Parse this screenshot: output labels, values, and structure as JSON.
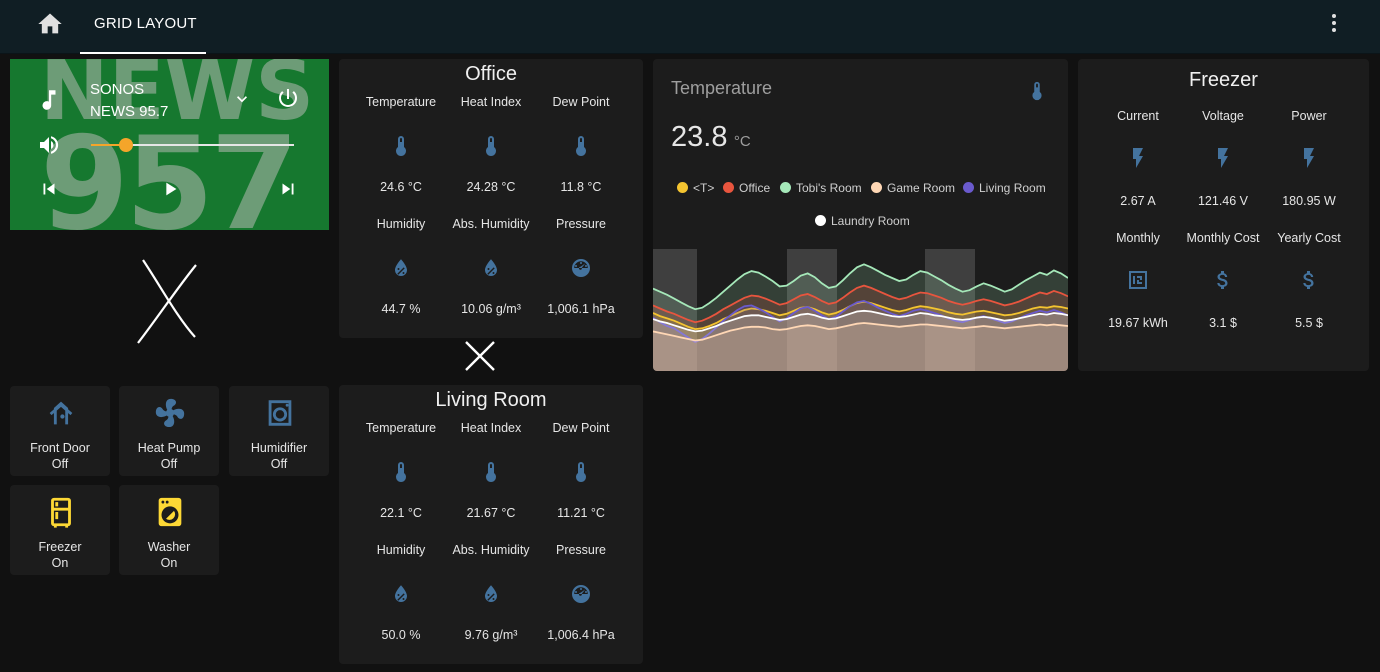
{
  "header": {
    "tab_label": "GRID LAYOUT"
  },
  "media_player": {
    "art_line1": "NEWS",
    "art_line2": "957",
    "source": "SONOS",
    "title": "NEWS 95.7",
    "volume_percent": 17
  },
  "office": {
    "title": "Office",
    "cells": [
      {
        "label": "Temperature",
        "value": "24.6 °C",
        "icon": "thermometer-icon"
      },
      {
        "label": "Heat Index",
        "value": "24.28 °C",
        "icon": "thermometer-icon"
      },
      {
        "label": "Dew Point",
        "value": "11.8 °C",
        "icon": "thermometer-icon"
      },
      {
        "label": "Humidity",
        "value": "44.7 %",
        "icon": "water-percent-icon"
      },
      {
        "label": "Abs. Humidity",
        "value": "10.06 g/m³",
        "icon": "water-percent-icon"
      },
      {
        "label": "Pressure",
        "value": "1,006.1 hPa",
        "icon": "gauge-icon"
      }
    ]
  },
  "living_room": {
    "title": "Living Room",
    "cells": [
      {
        "label": "Temperature",
        "value": "22.1 °C",
        "icon": "thermometer-icon"
      },
      {
        "label": "Heat Index",
        "value": "21.67 °C",
        "icon": "thermometer-icon"
      },
      {
        "label": "Dew Point",
        "value": "11.21 °C",
        "icon": "thermometer-icon"
      },
      {
        "label": "Humidity",
        "value": "50.0 %",
        "icon": "water-percent-icon"
      },
      {
        "label": "Abs. Humidity",
        "value": "9.76 g/m³",
        "icon": "water-percent-icon"
      },
      {
        "label": "Pressure",
        "value": "1,006.4 hPa",
        "icon": "gauge-icon"
      }
    ]
  },
  "tiles": [
    {
      "name": "Front Door",
      "state": "Off",
      "icon": "door-icon",
      "color": "#44739e"
    },
    {
      "name": "Heat Pump",
      "state": "Off",
      "icon": "air-conditioner-icon",
      "color": "#44739e"
    },
    {
      "name": "Humidifier",
      "state": "Off",
      "icon": "humidifier-icon",
      "color": "#44739e"
    },
    {
      "name": "Freezer",
      "state": "On",
      "icon": "fridge-icon",
      "color": "#fdd835"
    },
    {
      "name": "Washer",
      "state": "On",
      "icon": "washing-machine-icon",
      "color": "#fdd835"
    }
  ],
  "temperature_graph": {
    "title": "Temperature",
    "value": "23.8",
    "unit": "°C",
    "icon": "thermometer-icon"
  },
  "chart_data": {
    "type": "line",
    "title": "Temperature",
    "x": [
      0,
      1,
      2,
      3,
      4,
      5,
      6,
      7,
      8,
      9,
      10,
      11,
      12,
      13,
      14,
      15,
      16,
      17,
      18,
      19,
      20,
      21,
      22,
      23,
      24,
      25,
      26,
      27,
      28,
      29,
      30,
      31,
      32,
      33,
      34,
      35,
      36,
      37,
      38,
      39,
      40,
      41,
      42,
      43,
      44,
      45,
      46,
      47,
      48,
      49,
      50,
      51,
      52,
      53,
      54,
      55,
      56,
      57,
      58,
      59
    ],
    "ylim": [
      14,
      30
    ],
    "series": [
      {
        "name": "<T>",
        "color": "#f4c430",
        "values": [
          21.6,
          21.2,
          20.9,
          20.6,
          20.2,
          19.8,
          19.5,
          19.6,
          19.9,
          20.3,
          20.8,
          21.2,
          21.6,
          22.0,
          22.2,
          22.1,
          21.9,
          21.6,
          21.3,
          21.5,
          21.9,
          22.3,
          22.4,
          22.1,
          21.7,
          21.4,
          21.6,
          22.0,
          22.5,
          22.9,
          23.1,
          22.9,
          22.6,
          22.3,
          22.0,
          21.8,
          22.0,
          22.3,
          22.5,
          22.4,
          22.2,
          22.0,
          21.7,
          21.5,
          21.4,
          21.6,
          21.8,
          21.9,
          21.7,
          21.5,
          21.3,
          21.4,
          21.6,
          21.9,
          22.2,
          22.4,
          22.3,
          22.5,
          22.4,
          22.2
        ]
      },
      {
        "name": "Office",
        "color": "#e8553e",
        "values": [
          22.6,
          22.2,
          21.8,
          21.5,
          21.1,
          20.7,
          20.4,
          20.6,
          21.0,
          21.5,
          22.1,
          22.6,
          23.1,
          23.6,
          23.9,
          23.8,
          23.5,
          23.1,
          22.7,
          22.9,
          23.4,
          23.9,
          24.1,
          23.7,
          23.2,
          22.8,
          23.0,
          23.6,
          24.3,
          24.9,
          25.2,
          24.9,
          24.5,
          24.1,
          23.7,
          23.4,
          23.6,
          24.0,
          24.3,
          24.2,
          23.9,
          23.6,
          23.2,
          22.9,
          22.7,
          22.9,
          23.2,
          23.4,
          23.2,
          22.9,
          22.6,
          22.8,
          23.1,
          23.5,
          23.9,
          24.3,
          24.1,
          24.5,
          24.2,
          23.8
        ]
      },
      {
        "name": "Tobi's Room",
        "color": "#a5e8b9",
        "values": [
          24.8,
          24.4,
          24.0,
          23.5,
          23.0,
          22.5,
          22.1,
          22.3,
          22.9,
          23.6,
          24.4,
          25.2,
          26.0,
          26.7,
          27.1,
          26.9,
          26.4,
          25.8,
          25.1,
          25.2,
          25.8,
          26.5,
          26.8,
          26.3,
          25.5,
          24.9,
          25.1,
          25.9,
          26.8,
          27.6,
          28.0,
          27.6,
          27.1,
          26.6,
          26.2,
          25.8,
          26.0,
          26.6,
          27.1,
          26.9,
          26.4,
          25.9,
          25.3,
          24.8,
          24.4,
          24.6,
          25.1,
          25.5,
          25.2,
          24.8,
          24.4,
          24.7,
          25.3,
          25.9,
          26.4,
          26.9,
          26.6,
          27.2,
          26.8,
          26.2
        ]
      },
      {
        "name": "Game Room",
        "color": "#ffd7b5",
        "values": [
          19.2,
          19.0,
          18.8,
          18.6,
          18.4,
          18.2,
          18.0,
          18.1,
          18.4,
          18.7,
          19.0,
          19.3,
          19.5,
          19.7,
          19.8,
          19.8,
          19.7,
          19.5,
          19.4,
          19.5,
          19.7,
          19.9,
          20.0,
          19.9,
          19.7,
          19.5,
          19.6,
          19.8,
          20.0,
          20.2,
          20.3,
          20.2,
          20.1,
          20.0,
          19.9,
          19.8,
          19.9,
          20.0,
          20.1,
          20.1,
          20.0,
          19.9,
          19.8,
          19.7,
          19.6,
          19.7,
          19.8,
          19.9,
          19.8,
          19.7,
          19.6,
          19.7,
          19.8,
          19.9,
          20.0,
          20.1,
          20.0,
          20.1,
          20.0,
          19.9
        ]
      },
      {
        "name": "Living Room",
        "color": "#6a5acd",
        "values": [
          21.0,
          20.4,
          19.9,
          19.6,
          19.0,
          18.4,
          17.8,
          18.2,
          18.9,
          19.7,
          20.6,
          21.3,
          22.0,
          22.5,
          22.6,
          22.2,
          21.7,
          21.1,
          20.5,
          20.9,
          21.6,
          22.2,
          22.4,
          21.9,
          21.3,
          20.8,
          21.1,
          21.8,
          22.5,
          23.0,
          23.2,
          22.8,
          22.3,
          21.9,
          21.5,
          21.2,
          21.5,
          21.9,
          22.1,
          21.9,
          21.6,
          21.3,
          20.9,
          20.6,
          20.4,
          20.7,
          21.0,
          21.2,
          20.9,
          20.6,
          20.3,
          20.5,
          20.9,
          21.3,
          21.6,
          21.9,
          21.7,
          22.0,
          21.7,
          21.3
        ]
      },
      {
        "name": "Laundry Room",
        "color": "#ffffff",
        "values": [
          20.8,
          20.5,
          20.3,
          20.0,
          19.7,
          19.4,
          19.2,
          19.3,
          19.6,
          19.9,
          20.3,
          20.6,
          20.9,
          21.2,
          21.3,
          21.3,
          21.1,
          20.9,
          20.7,
          20.8,
          21.1,
          21.4,
          21.5,
          21.3,
          21.0,
          20.8,
          20.9,
          21.2,
          21.5,
          21.8,
          21.9,
          21.8,
          21.6,
          21.4,
          21.2,
          21.1,
          21.2,
          21.4,
          21.6,
          21.5,
          21.3,
          21.2,
          21.0,
          20.8,
          20.7,
          20.8,
          21.0,
          21.1,
          21.0,
          20.8,
          20.6,
          20.7,
          20.9,
          21.1,
          21.3,
          21.5,
          21.4,
          21.6,
          21.5,
          21.3
        ]
      }
    ]
  },
  "freezer": {
    "title": "Freezer",
    "cells": [
      {
        "label": "Current",
        "value": "2.67 A",
        "icon": "flash-icon"
      },
      {
        "label": "Voltage",
        "value": "121.46 V",
        "icon": "flash-icon"
      },
      {
        "label": "Power",
        "value": "180.95 W",
        "icon": "flash-icon"
      },
      {
        "label": "Monthly",
        "value": "19.67 kWh",
        "icon": "meter-icon"
      },
      {
        "label": "Monthly Cost",
        "value": "3.1 $",
        "icon": "currency-usd-icon"
      },
      {
        "label": "Yearly Cost",
        "value": "5.5 $",
        "icon": "currency-usd-icon"
      }
    ]
  }
}
